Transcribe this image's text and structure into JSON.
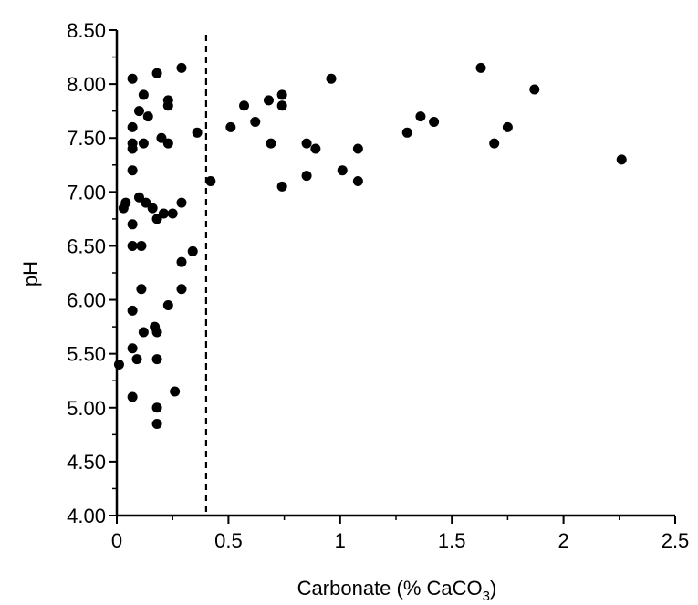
{
  "chart_data": {
    "type": "scatter",
    "title": "",
    "xlabel": "Carbonate (% CaCO",
    "xlabel_subscript": "3",
    "xlabel_close": ")",
    "ylabel": "pH",
    "xlim": [
      0,
      2.5
    ],
    "ylim": [
      4.0,
      8.5
    ],
    "grid": false,
    "legend": "none",
    "point_color": "#000000",
    "x_ticks": [
      {
        "value": 0,
        "label": "0"
      },
      {
        "value": 0.5,
        "label": "0.5"
      },
      {
        "value": 1,
        "label": "1"
      },
      {
        "value": 1.5,
        "label": "1.5"
      },
      {
        "value": 2,
        "label": "2"
      },
      {
        "value": 2.5,
        "label": "2.5"
      }
    ],
    "y_ticks": [
      {
        "value": 4.0,
        "label": "4.00"
      },
      {
        "value": 4.5,
        "label": "4.50"
      },
      {
        "value": 5.0,
        "label": "5.00"
      },
      {
        "value": 5.5,
        "label": "5.50"
      },
      {
        "value": 6.0,
        "label": "6.00"
      },
      {
        "value": 6.5,
        "label": "6.50"
      },
      {
        "value": 7.0,
        "label": "7.00"
      },
      {
        "value": 7.5,
        "label": "7.50"
      },
      {
        "value": 8.0,
        "label": "8.00"
      },
      {
        "value": 8.5,
        "label": "8.50"
      }
    ],
    "reference_line": {
      "x": 0.4,
      "style": "dashed"
    },
    "points": [
      [
        0.07,
        8.05
      ],
      [
        0.18,
        8.1
      ],
      [
        0.29,
        8.15
      ],
      [
        0.12,
        7.9
      ],
      [
        0.1,
        7.75
      ],
      [
        0.14,
        7.7
      ],
      [
        0.23,
        7.85
      ],
      [
        0.23,
        7.8
      ],
      [
        0.07,
        7.6
      ],
      [
        0.07,
        7.45
      ],
      [
        0.07,
        7.4
      ],
      [
        0.12,
        7.45
      ],
      [
        0.2,
        7.5
      ],
      [
        0.23,
        7.45
      ],
      [
        0.36,
        7.55
      ],
      [
        0.07,
        7.2
      ],
      [
        0.42,
        7.1
      ],
      [
        0.04,
        6.9
      ],
      [
        0.03,
        6.85
      ],
      [
        0.1,
        6.95
      ],
      [
        0.13,
        6.9
      ],
      [
        0.16,
        6.85
      ],
      [
        0.18,
        6.75
      ],
      [
        0.21,
        6.8
      ],
      [
        0.25,
        6.8
      ],
      [
        0.29,
        6.9
      ],
      [
        0.07,
        6.7
      ],
      [
        0.07,
        6.5
      ],
      [
        0.11,
        6.5
      ],
      [
        0.34,
        6.45
      ],
      [
        0.29,
        6.35
      ],
      [
        0.11,
        6.1
      ],
      [
        0.29,
        6.1
      ],
      [
        0.07,
        5.9
      ],
      [
        0.23,
        5.95
      ],
      [
        0.12,
        5.7
      ],
      [
        0.17,
        5.75
      ],
      [
        0.18,
        5.7
      ],
      [
        0.07,
        5.55
      ],
      [
        0.09,
        5.45
      ],
      [
        0.18,
        5.45
      ],
      [
        0.01,
        5.4
      ],
      [
        0.07,
        5.1
      ],
      [
        0.26,
        5.15
      ],
      [
        0.18,
        5.0
      ],
      [
        0.18,
        4.85
      ],
      [
        0.51,
        7.6
      ],
      [
        0.57,
        7.8
      ],
      [
        0.62,
        7.65
      ],
      [
        0.68,
        7.85
      ],
      [
        0.69,
        7.45
      ],
      [
        0.74,
        7.9
      ],
      [
        0.74,
        7.8
      ],
      [
        0.74,
        7.05
      ],
      [
        0.85,
        7.45
      ],
      [
        0.85,
        7.15
      ],
      [
        0.89,
        7.4
      ],
      [
        0.96,
        8.05
      ],
      [
        1.01,
        7.2
      ],
      [
        1.08,
        7.4
      ],
      [
        1.08,
        7.1
      ],
      [
        1.3,
        7.55
      ],
      [
        1.36,
        7.7
      ],
      [
        1.42,
        7.65
      ],
      [
        1.63,
        8.15
      ],
      [
        1.69,
        7.45
      ],
      [
        1.75,
        7.6
      ],
      [
        1.87,
        7.95
      ],
      [
        2.26,
        7.3
      ]
    ]
  }
}
